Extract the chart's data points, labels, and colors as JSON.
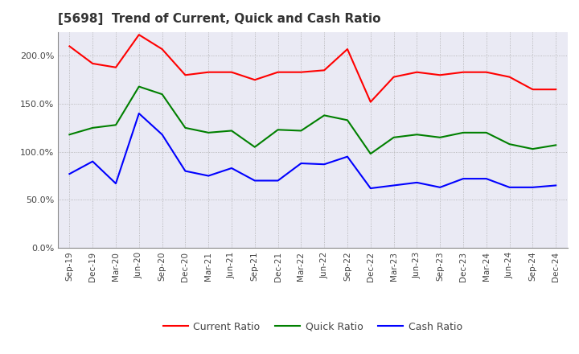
{
  "title": "[5698]  Trend of Current, Quick and Cash Ratio",
  "title_fontsize": 11,
  "ylim": [
    0,
    225
  ],
  "background_color": "#ffffff",
  "plot_bg_color": "#eaeaf4",
  "grid_color": "#aaaaaa",
  "x_labels": [
    "Sep-19",
    "Dec-19",
    "Mar-20",
    "Jun-20",
    "Sep-20",
    "Dec-20",
    "Mar-21",
    "Jun-21",
    "Sep-21",
    "Dec-21",
    "Mar-22",
    "Jun-22",
    "Sep-22",
    "Dec-22",
    "Mar-23",
    "Jun-23",
    "Sep-23",
    "Dec-23",
    "Mar-24",
    "Jun-24",
    "Sep-24",
    "Dec-24"
  ],
  "current_ratio": [
    210,
    192,
    188,
    222,
    207,
    180,
    183,
    183,
    175,
    183,
    183,
    185,
    207,
    152,
    178,
    183,
    180,
    183,
    183,
    178,
    165,
    165
  ],
  "quick_ratio": [
    118,
    125,
    128,
    168,
    160,
    125,
    120,
    122,
    105,
    123,
    122,
    138,
    133,
    98,
    115,
    118,
    115,
    120,
    120,
    108,
    103,
    107
  ],
  "cash_ratio": [
    77,
    90,
    67,
    140,
    118,
    80,
    75,
    83,
    70,
    70,
    88,
    87,
    95,
    62,
    65,
    68,
    63,
    72,
    72,
    63,
    63,
    65
  ],
  "current_color": "#ff0000",
  "quick_color": "#008000",
  "cash_color": "#0000ff",
  "legend_labels": [
    "Current Ratio",
    "Quick Ratio",
    "Cash Ratio"
  ]
}
